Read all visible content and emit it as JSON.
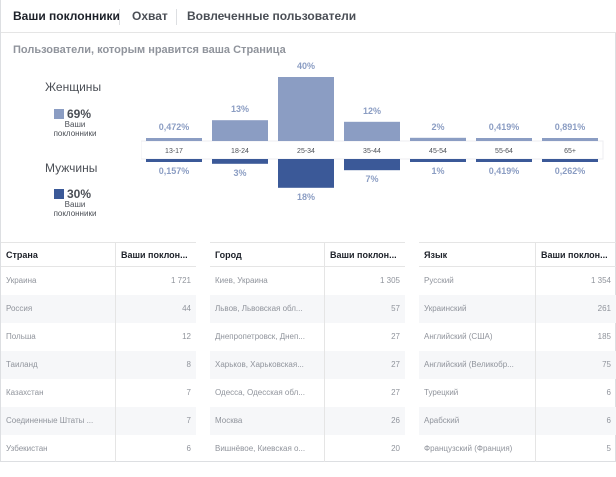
{
  "tabs": [
    {
      "label": "Ваши поклонники",
      "active": true
    },
    {
      "label": "Охват",
      "active": false
    },
    {
      "label": "Вовлеченные пользователи",
      "active": false
    }
  ],
  "section_title": "Пользователи, которым нравится ваша Страница",
  "women": {
    "label": "Женщины",
    "pct": "69%",
    "sub": "Ваши поклонники",
    "color": "#8b9dc3"
  },
  "men": {
    "label": "Мужчины",
    "pct": "30%",
    "sub": "Ваши поклонники",
    "color": "#3b5998"
  },
  "chart_data": {
    "type": "bar",
    "categories": [
      "13-17",
      "18-24",
      "25-34",
      "35-44",
      "45-54",
      "55-64",
      "65+"
    ],
    "series": [
      {
        "name": "Женщины",
        "values": [
          0.472,
          13,
          40,
          12,
          2,
          0.419,
          0.891
        ],
        "labels": [
          "0,472%",
          "13%",
          "40%",
          "12%",
          "2%",
          "0,419%",
          "0,891%"
        ],
        "color": "#8b9dc3"
      },
      {
        "name": "Мужчины",
        "values": [
          0.157,
          3,
          18,
          7,
          1,
          0.419,
          0.262
        ],
        "labels": [
          "0,157%",
          "3%",
          "18%",
          "7%",
          "1%",
          "0,419%",
          "0,262%"
        ],
        "color": "#3b5998"
      }
    ]
  },
  "tables": {
    "country": {
      "headers": [
        "Страна",
        "Ваши поклон..."
      ],
      "rows": [
        [
          "Украина",
          "1 721"
        ],
        [
          "Россия",
          "44"
        ],
        [
          "Польша",
          "12"
        ],
        [
          "Таиланд",
          "8"
        ],
        [
          "Казахстан",
          "7"
        ],
        [
          "Соединенные Штаты ...",
          "7"
        ],
        [
          "Узбекистан",
          "6"
        ]
      ]
    },
    "city": {
      "headers": [
        "Город",
        "Ваши поклон..."
      ],
      "rows": [
        [
          "Киев, Украина",
          "1 305"
        ],
        [
          "Львов, Львовская обл...",
          "57"
        ],
        [
          "Днепропетровск, Днеп...",
          "27"
        ],
        [
          "Харьков, Харьковская...",
          "27"
        ],
        [
          "Одесса, Одесская обл...",
          "27"
        ],
        [
          "Москва",
          "26"
        ],
        [
          "Вишнёвое, Киевская о...",
          "20"
        ]
      ]
    },
    "language": {
      "headers": [
        "Язык",
        "Ваши поклон..."
      ],
      "rows": [
        [
          "Русский",
          "1 354"
        ],
        [
          "Украинский",
          "261"
        ],
        [
          "Английский (США)",
          "185"
        ],
        [
          "Английский (Великобр...",
          "75"
        ],
        [
          "Турецкий",
          "6"
        ],
        [
          "Арабский",
          "6"
        ],
        [
          "Французский (Франция)",
          "5"
        ]
      ]
    }
  }
}
